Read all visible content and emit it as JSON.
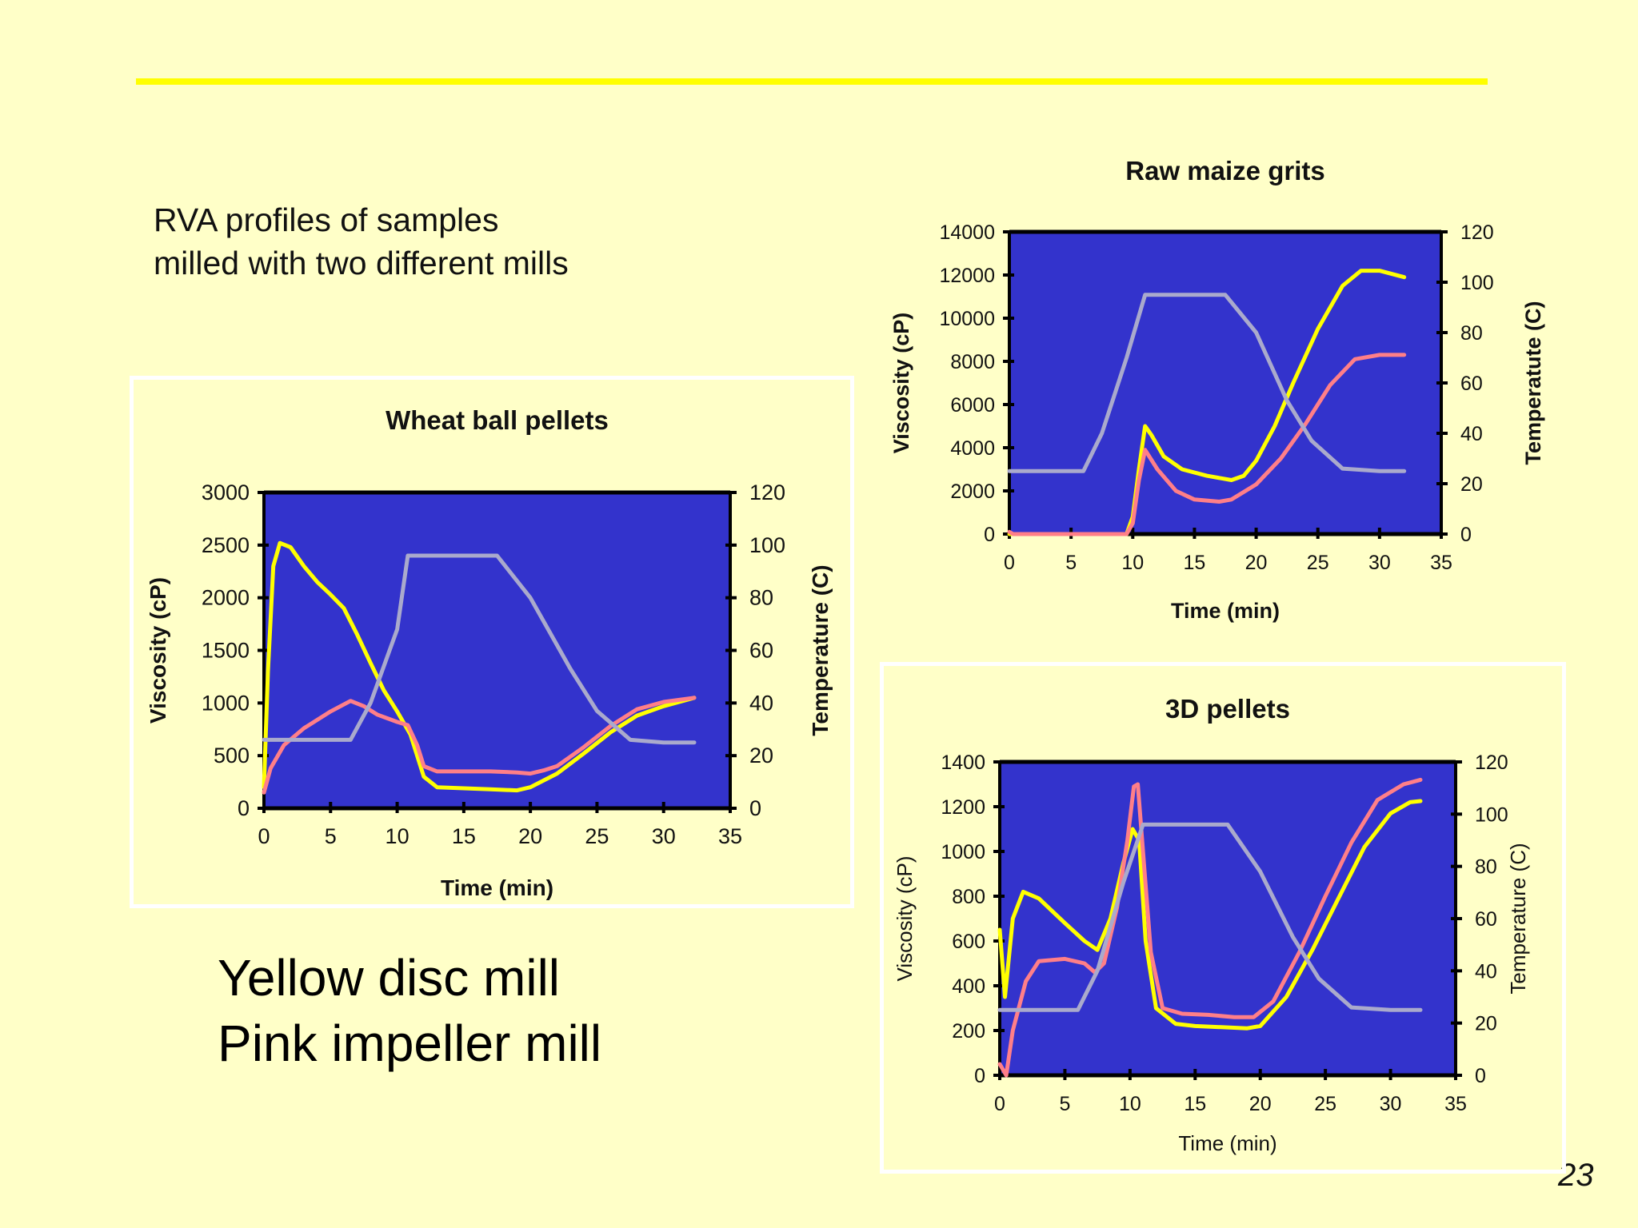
{
  "slide": {
    "intro_lines": [
      "RVA profiles of samples",
      "milled with two different mills"
    ],
    "legend_lines": [
      "Yellow disc mill",
      "Pink impeller mill"
    ],
    "page_number": "23"
  },
  "colors": {
    "background": "#FFFFC8",
    "plot_area": "#3333CC",
    "yellow_series": "#FFFF00",
    "pink_series": "#FF7F88",
    "temperature_series": "#AAAACC",
    "rule": "#FFFF00"
  },
  "chart_data": [
    {
      "type": "line",
      "title": "Wheat ball pellets",
      "xlabel": "Time (min)",
      "ylabel": "Viscosity (cP)",
      "y2label": "Temperature (C)",
      "xlim": [
        0,
        35
      ],
      "ylim": [
        0,
        3000
      ],
      "y2lim": [
        0,
        120
      ],
      "xticks": [
        0,
        5,
        10,
        15,
        20,
        25,
        30,
        35
      ],
      "yticks": [
        0,
        500,
        1000,
        1500,
        2000,
        2500,
        3000
      ],
      "y2ticks": [
        0,
        20,
        40,
        60,
        80,
        100,
        120
      ],
      "grid": false,
      "series": [
        {
          "axis": "left",
          "color": "yellow",
          "points": [
            [
              0,
              200
            ],
            [
              0.3,
              1300
            ],
            [
              0.7,
              2300
            ],
            [
              1.2,
              2520
            ],
            [
              2,
              2480
            ],
            [
              3,
              2300
            ],
            [
              4,
              2150
            ],
            [
              5,
              2030
            ],
            [
              6,
              1900
            ],
            [
              7,
              1650
            ],
            [
              8,
              1380
            ],
            [
              9,
              1120
            ],
            [
              10,
              920
            ],
            [
              11,
              700
            ],
            [
              12,
              300
            ],
            [
              13,
              200
            ],
            [
              15,
              190
            ],
            [
              17,
              180
            ],
            [
              19,
              170
            ],
            [
              20,
              200
            ],
            [
              22,
              330
            ],
            [
              24,
              520
            ],
            [
              26,
              720
            ],
            [
              28,
              880
            ],
            [
              30,
              970
            ],
            [
              32.3,
              1050
            ]
          ]
        },
        {
          "axis": "left",
          "color": "pink",
          "points": [
            [
              0,
              150
            ],
            [
              0.5,
              380
            ],
            [
              1.5,
              600
            ],
            [
              3,
              760
            ],
            [
              5,
              920
            ],
            [
              6.5,
              1020
            ],
            [
              7.5,
              970
            ],
            [
              8.5,
              890
            ],
            [
              10,
              820
            ],
            [
              10.8,
              790
            ],
            [
              11.5,
              600
            ],
            [
              12,
              400
            ],
            [
              13,
              350
            ],
            [
              15,
              350
            ],
            [
              17,
              350
            ],
            [
              19,
              340
            ],
            [
              20,
              330
            ],
            [
              21,
              360
            ],
            [
              22,
              400
            ],
            [
              24,
              580
            ],
            [
              26,
              780
            ],
            [
              28,
              940
            ],
            [
              30,
              1010
            ],
            [
              32.3,
              1050
            ]
          ]
        },
        {
          "axis": "right",
          "color": "temperature",
          "points": [
            [
              0,
              26
            ],
            [
              6.5,
              26
            ],
            [
              8,
              40
            ],
            [
              10,
              68
            ],
            [
              10.8,
              96
            ],
            [
              16,
              96
            ],
            [
              17.5,
              96
            ],
            [
              20,
              80
            ],
            [
              23,
              53
            ],
            [
              25,
              37
            ],
            [
              27.5,
              26
            ],
            [
              30,
              25
            ],
            [
              32.3,
              25
            ]
          ]
        }
      ]
    },
    {
      "type": "line",
      "title": "Raw maize grits",
      "xlabel": "Time (min)",
      "ylabel": "Viscosity (cP)",
      "y2label": "Temperatute (C)",
      "xlim": [
        0,
        35
      ],
      "ylim": [
        0,
        14000
      ],
      "y2lim": [
        0,
        120
      ],
      "xticks": [
        0,
        5,
        10,
        15,
        20,
        25,
        30,
        35
      ],
      "yticks": [
        0,
        2000,
        4000,
        6000,
        8000,
        10000,
        12000,
        14000
      ],
      "y2ticks": [
        0,
        20,
        40,
        60,
        80,
        100,
        120
      ],
      "grid": false,
      "series": [
        {
          "axis": "left",
          "color": "yellow",
          "points": [
            [
              0,
              0
            ],
            [
              9.5,
              0
            ],
            [
              10,
              800
            ],
            [
              10.5,
              3000
            ],
            [
              11,
              5000
            ],
            [
              11.5,
              4600
            ],
            [
              12.5,
              3600
            ],
            [
              14,
              3000
            ],
            [
              16,
              2700
            ],
            [
              18,
              2500
            ],
            [
              19,
              2700
            ],
            [
              20,
              3400
            ],
            [
              21.5,
              5000
            ],
            [
              23,
              7000
            ],
            [
              25,
              9500
            ],
            [
              27,
              11500
            ],
            [
              28.5,
              12200
            ],
            [
              30,
              12200
            ],
            [
              32,
              11900
            ]
          ]
        },
        {
          "axis": "left",
          "color": "pink",
          "points": [
            [
              0,
              100
            ],
            [
              0.3,
              0
            ],
            [
              9.5,
              0
            ],
            [
              10,
              500
            ],
            [
              10.5,
              2500
            ],
            [
              11,
              3900
            ],
            [
              12,
              3000
            ],
            [
              13.5,
              2000
            ],
            [
              15,
              1600
            ],
            [
              17,
              1500
            ],
            [
              18,
              1600
            ],
            [
              20,
              2300
            ],
            [
              22,
              3500
            ],
            [
              24,
              5100
            ],
            [
              26,
              6900
            ],
            [
              28,
              8100
            ],
            [
              30,
              8300
            ],
            [
              32,
              8300
            ]
          ]
        },
        {
          "axis": "right",
          "color": "temperature",
          "points": [
            [
              0,
              25
            ],
            [
              6,
              25
            ],
            [
              7.5,
              40
            ],
            [
              9.5,
              70
            ],
            [
              11,
              95
            ],
            [
              15,
              95
            ],
            [
              17.5,
              95
            ],
            [
              20,
              80
            ],
            [
              22.5,
              53
            ],
            [
              24.5,
              37
            ],
            [
              27,
              26
            ],
            [
              30,
              25
            ],
            [
              32,
              25
            ]
          ]
        }
      ]
    },
    {
      "type": "line",
      "title": "3D pellets",
      "xlabel": "Time (min)",
      "ylabel": "Viscosity (cP)",
      "y2label": "Temperature (C)",
      "xlim": [
        0,
        35
      ],
      "ylim": [
        0,
        1400
      ],
      "y2lim": [
        0,
        120
      ],
      "xticks": [
        0,
        5,
        10,
        15,
        20,
        25,
        30,
        35
      ],
      "yticks": [
        0,
        200,
        400,
        600,
        800,
        1000,
        1200,
        1400
      ],
      "y2ticks": [
        0,
        20,
        40,
        60,
        80,
        100,
        120
      ],
      "grid": false,
      "series": [
        {
          "axis": "left",
          "color": "yellow",
          "points": [
            [
              0,
              650
            ],
            [
              0.4,
              350
            ],
            [
              1,
              700
            ],
            [
              1.8,
              820
            ],
            [
              3,
              790
            ],
            [
              5,
              680
            ],
            [
              6.5,
              600
            ],
            [
              7.5,
              560
            ],
            [
              8.5,
              700
            ],
            [
              9.5,
              950
            ],
            [
              10.2,
              1100
            ],
            [
              10.7,
              1050
            ],
            [
              11.2,
              600
            ],
            [
              12,
              300
            ],
            [
              13.5,
              230
            ],
            [
              15,
              220
            ],
            [
              17,
              215
            ],
            [
              19,
              210
            ],
            [
              20,
              220
            ],
            [
              22,
              350
            ],
            [
              24,
              560
            ],
            [
              26,
              790
            ],
            [
              28,
              1020
            ],
            [
              30,
              1170
            ],
            [
              31.5,
              1220
            ],
            [
              32.3,
              1225
            ]
          ]
        },
        {
          "axis": "left",
          "color": "pink",
          "points": [
            [
              0,
              50
            ],
            [
              0.5,
              0
            ],
            [
              1,
              200
            ],
            [
              2,
              420
            ],
            [
              3,
              510
            ],
            [
              5,
              520
            ],
            [
              6.5,
              500
            ],
            [
              7.3,
              460
            ],
            [
              8,
              500
            ],
            [
              9,
              750
            ],
            [
              9.8,
              1050
            ],
            [
              10.3,
              1290
            ],
            [
              10.6,
              1300
            ],
            [
              11,
              1000
            ],
            [
              11.6,
              550
            ],
            [
              12.5,
              300
            ],
            [
              14,
              275
            ],
            [
              16,
              270
            ],
            [
              18,
              260
            ],
            [
              19.5,
              260
            ],
            [
              21,
              330
            ],
            [
              23,
              550
            ],
            [
              25,
              800
            ],
            [
              27,
              1040
            ],
            [
              29,
              1230
            ],
            [
              31,
              1300
            ],
            [
              32.3,
              1320
            ]
          ]
        },
        {
          "axis": "right",
          "color": "temperature",
          "points": [
            [
              0,
              25
            ],
            [
              6,
              25
            ],
            [
              7.5,
              40
            ],
            [
              9.5,
              74
            ],
            [
              11,
              96
            ],
            [
              15,
              96
            ],
            [
              17.5,
              96
            ],
            [
              20,
              78
            ],
            [
              22.5,
              53
            ],
            [
              24.5,
              37
            ],
            [
              27,
              26
            ],
            [
              30,
              25
            ],
            [
              32.3,
              25
            ]
          ]
        }
      ]
    }
  ]
}
